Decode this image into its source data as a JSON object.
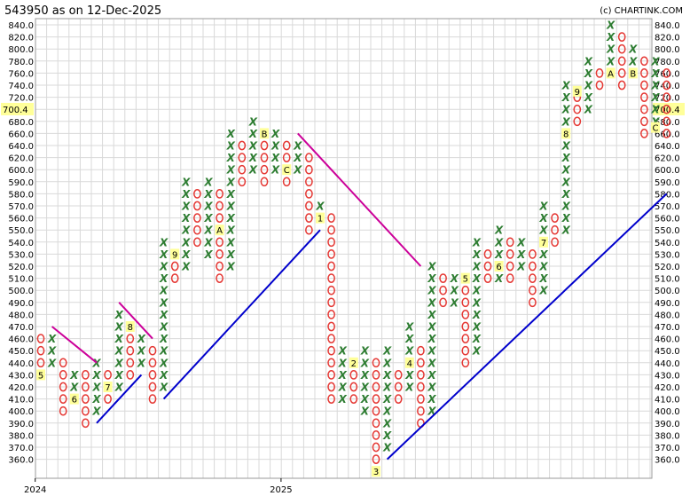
{
  "header": {
    "title": "543950 as on 12-Dec-2025",
    "credit": "(c) CHARTINK.COM"
  },
  "chart_data": {
    "type": "point-and-figure",
    "title": "543950 as on 12-Dec-2025",
    "ylim": [
      360,
      840
    ],
    "box_size": 10,
    "y_ticks": [
      840,
      820,
      800,
      780,
      760,
      740,
      720,
      700,
      680,
      660,
      640,
      620,
      600,
      590,
      580,
      570,
      560,
      550,
      540,
      530,
      520,
      510,
      500,
      490,
      480,
      470,
      460,
      450,
      440,
      430,
      420,
      410,
      400,
      390,
      380,
      370,
      360
    ],
    "y_tick_labels": [
      "840.0",
      "820.0",
      "800.0",
      "780.0",
      "760.0",
      "740.0",
      "720.0",
      "700.0",
      "680.0",
      "660.0",
      "640.0",
      "620.0",
      "600.0",
      "590.0",
      "580.0",
      "570.0",
      "560.0",
      "550.0",
      "540.0",
      "530.0",
      "520.0",
      "510.0",
      "500.0",
      "490.0",
      "480.0",
      "470.0",
      "460.0",
      "450.0",
      "440.0",
      "430.0",
      "420.0",
      "410.0",
      "400.0",
      "390.0",
      "380.0",
      "370.0",
      "360.0"
    ],
    "current_price": "700.4",
    "x_labels": [
      {
        "col": 0,
        "text": "2024"
      },
      {
        "col": 22,
        "text": "2025"
      }
    ],
    "columns": [
      {
        "type": "O",
        "high": 460,
        "low": 440,
        "month_marker": {
          "value": 430,
          "label": "5"
        }
      },
      {
        "type": "X",
        "high": 460,
        "low": 440
      },
      {
        "type": "O",
        "high": 440,
        "low": 400
      },
      {
        "type": "X",
        "high": 430,
        "low": 410,
        "month_marker": {
          "value": 410,
          "label": "6"
        }
      },
      {
        "type": "O",
        "high": 430,
        "low": 390
      },
      {
        "type": "X",
        "high": 440,
        "low": 400
      },
      {
        "type": "O",
        "high": 430,
        "low": 410,
        "month_marker": {
          "value": 420,
          "label": "7"
        }
      },
      {
        "type": "X",
        "high": 480,
        "low": 420
      },
      {
        "type": "O",
        "high": 460,
        "low": 430,
        "month_marker": {
          "value": 470,
          "label": "8"
        }
      },
      {
        "type": "X",
        "high": 460,
        "low": 440
      },
      {
        "type": "O",
        "high": 450,
        "low": 410
      },
      {
        "type": "X",
        "high": 540,
        "low": 420
      },
      {
        "type": "O",
        "high": 530,
        "low": 510,
        "month_marker": {
          "value": 530,
          "label": "9"
        }
      },
      {
        "type": "X",
        "high": 590,
        "low": 520
      },
      {
        "type": "O",
        "high": 580,
        "low": 540
      },
      {
        "type": "X",
        "high": 590,
        "low": 530
      },
      {
        "type": "O",
        "high": 580,
        "low": 510,
        "month_marker": {
          "value": 550,
          "label": "A"
        }
      },
      {
        "type": "X",
        "high": 660,
        "low": 520
      },
      {
        "type": "O",
        "high": 640,
        "low": 590
      },
      {
        "type": "X",
        "high": 680,
        "low": 600
      },
      {
        "type": "O",
        "high": 660,
        "low": 590,
        "month_marker": {
          "value": 660,
          "label": "B"
        }
      },
      {
        "type": "X",
        "high": 660,
        "low": 600
      },
      {
        "type": "O",
        "high": 640,
        "low": 590,
        "month_marker": {
          "value": 600,
          "label": "C"
        }
      },
      {
        "type": "X",
        "high": 650,
        "low": 600
      },
      {
        "type": "O",
        "high": 620,
        "low": 550
      },
      {
        "type": "X",
        "high": 570,
        "low": 560,
        "month_marker": {
          "value": 560,
          "label": "1"
        }
      },
      {
        "type": "O",
        "high": 560,
        "low": 410
      },
      {
        "type": "X",
        "high": 450,
        "low": 410
      },
      {
        "type": "O",
        "high": 440,
        "low": 410,
        "month_marker": {
          "value": 440,
          "label": "2"
        }
      },
      {
        "type": "X",
        "high": 450,
        "low": 400
      },
      {
        "type": "O",
        "high": 440,
        "low": 360,
        "month_marker": {
          "value": 350,
          "label": "3"
        }
      },
      {
        "type": "X",
        "high": 450,
        "low": 370
      },
      {
        "type": "O",
        "high": 430,
        "low": 410
      },
      {
        "type": "X",
        "high": 470,
        "low": 420,
        "month_marker": {
          "value": 440,
          "label": "4"
        }
      },
      {
        "type": "O",
        "high": 450,
        "low": 390
      },
      {
        "type": "X",
        "high": 520,
        "low": 400
      },
      {
        "type": "O",
        "high": 510,
        "low": 490
      },
      {
        "type": "X",
        "high": 510,
        "low": 490
      },
      {
        "type": "O",
        "high": 500,
        "low": 440,
        "month_marker": {
          "value": 510,
          "label": "5"
        }
      },
      {
        "type": "X",
        "high": 540,
        "low": 450
      },
      {
        "type": "O",
        "high": 530,
        "low": 510
      },
      {
        "type": "X",
        "high": 550,
        "low": 510,
        "month_marker": {
          "value": 520,
          "label": "6"
        }
      },
      {
        "type": "O",
        "high": 540,
        "low": 510
      },
      {
        "type": "X",
        "high": 540,
        "low": 520
      },
      {
        "type": "O",
        "high": 530,
        "low": 490
      },
      {
        "type": "X",
        "high": 570,
        "low": 500,
        "month_marker": {
          "value": 540,
          "label": "7"
        }
      },
      {
        "type": "O",
        "high": 560,
        "low": 540
      },
      {
        "type": "X",
        "high": 740,
        "low": 550,
        "month_marker": {
          "value": 660,
          "label": "8"
        }
      },
      {
        "type": "O",
        "high": 720,
        "low": 680,
        "month_marker": {
          "value": 730,
          "label": "9"
        }
      },
      {
        "type": "X",
        "high": 780,
        "low": 700
      },
      {
        "type": "O",
        "high": 760,
        "low": 740
      },
      {
        "type": "X",
        "high": 840,
        "low": 750,
        "month_marker": {
          "value": 760,
          "label": "A"
        }
      },
      {
        "type": "O",
        "high": 820,
        "low": 740
      },
      {
        "type": "X",
        "high": 800,
        "low": 760,
        "month_marker": {
          "value": 760,
          "label": "B"
        }
      },
      {
        "type": "O",
        "high": 790,
        "low": 660
      },
      {
        "type": "X",
        "high": 780,
        "low": 670,
        "month_marker": {
          "value": 670,
          "label": "C"
        }
      },
      {
        "type": "O",
        "high": 770,
        "low": 660
      }
    ],
    "trend_lines": [
      {
        "color": "#cc0099",
        "points": [
          {
            "col": 1,
            "value": 470
          },
          {
            "col": 5,
            "value": 440
          }
        ]
      },
      {
        "color": "#cc0099",
        "points": [
          {
            "col": 7,
            "value": 490
          },
          {
            "col": 10,
            "value": 460
          }
        ]
      },
      {
        "color": "#0000cc",
        "points": [
          {
            "col": 5,
            "value": 390
          },
          {
            "col": 9,
            "value": 430
          }
        ]
      },
      {
        "color": "#0000cc",
        "points": [
          {
            "col": 11,
            "value": 410
          },
          {
            "col": 25,
            "value": 550
          }
        ]
      },
      {
        "color": "#cc0099",
        "points": [
          {
            "col": 23,
            "value": 660
          },
          {
            "col": 34,
            "value": 520
          }
        ]
      },
      {
        "color": "#0000cc",
        "points": [
          {
            "col": 31,
            "value": 360
          },
          {
            "col": 56,
            "value": 580
          }
        ]
      }
    ],
    "colors": {
      "x_mark": "#2e7d32",
      "o_mark": "#e53935",
      "grid": "#d9d9d9",
      "month_marker_bg": "#ffff99",
      "price_box_bg": "#ffff99"
    }
  }
}
